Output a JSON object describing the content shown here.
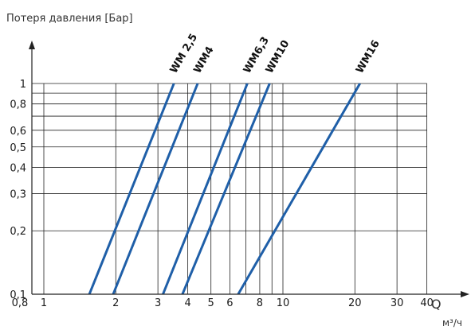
{
  "chart_data": {
    "type": "line",
    "title": "",
    "ylabel": "Потеря давления [Бар]",
    "xlabel": "Q",
    "xunit": "м³/ч",
    "x_scale": "log",
    "y_scale": "log",
    "xlim": [
      0.8,
      40
    ],
    "ylim": [
      0.1,
      1
    ],
    "x_ticks": [
      {
        "value": 0.8,
        "label": "0,8"
      },
      {
        "value": 1,
        "label": "1"
      },
      {
        "value": 2,
        "label": "2"
      },
      {
        "value": 3,
        "label": "3"
      },
      {
        "value": 4,
        "label": "4"
      },
      {
        "value": 5,
        "label": "5"
      },
      {
        "value": 6,
        "label": "6"
      },
      {
        "value": 8,
        "label": "8"
      },
      {
        "value": 10,
        "label": "10"
      },
      {
        "value": 20,
        "label": "20"
      },
      {
        "value": 30,
        "label": "30"
      },
      {
        "value": 40,
        "label": "40"
      }
    ],
    "x_gridlines": [
      1,
      2,
      3,
      4,
      5,
      6,
      7,
      8,
      9,
      10,
      20,
      30,
      40
    ],
    "y_ticks": [
      {
        "value": 0.1,
        "label": "0,1"
      },
      {
        "value": 0.2,
        "label": "0,2"
      },
      {
        "value": 0.3,
        "label": "0,3"
      },
      {
        "value": 0.4,
        "label": "0,4"
      },
      {
        "value": 0.5,
        "label": "0,5"
      },
      {
        "value": 0.6,
        "label": "0,6"
      },
      {
        "value": 0.8,
        "label": "0,8"
      },
      {
        "value": 1,
        "label": "1"
      }
    ],
    "y_gridlines": [
      0.1,
      0.2,
      0.3,
      0.4,
      0.5,
      0.6,
      0.7,
      0.8,
      0.9,
      1
    ],
    "grid": true,
    "series_color": "#1f5fa8",
    "series": [
      {
        "name": "WM 2,5",
        "x": [
          1.55,
          3.5
        ],
        "y": [
          0.1,
          1
        ]
      },
      {
        "name": "WM4",
        "x": [
          1.95,
          4.4
        ],
        "y": [
          0.1,
          1
        ]
      },
      {
        "name": "WM6,3",
        "x": [
          3.15,
          7.1
        ],
        "y": [
          0.1,
          1
        ]
      },
      {
        "name": "WM10",
        "x": [
          3.8,
          8.8
        ],
        "y": [
          0.1,
          1
        ]
      },
      {
        "name": "WM16",
        "x": [
          6.5,
          21
        ],
        "y": [
          0.1,
          1
        ]
      }
    ]
  }
}
